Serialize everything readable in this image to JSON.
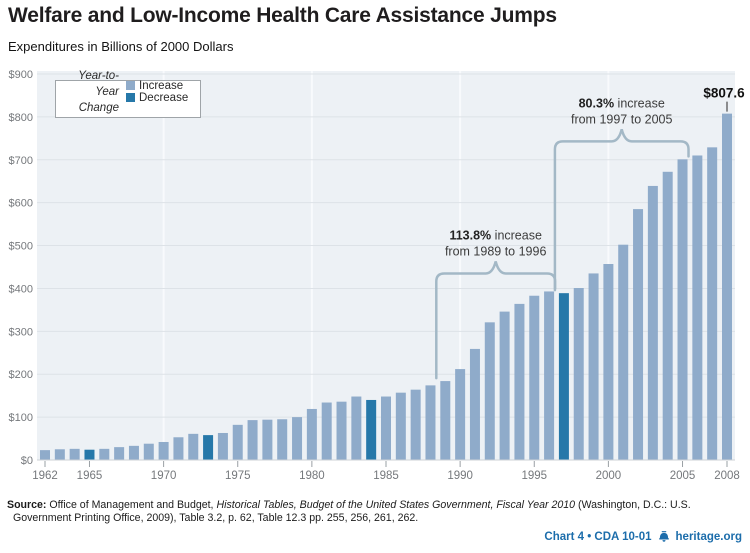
{
  "header": {
    "title": "Welfare and Low-Income Health Care Assistance Jumps",
    "subtitle": "Expenditures in Billions of 2000 Dollars"
  },
  "legend": {
    "title_line1": "Year-to-Year",
    "title_line2": "Change",
    "items": [
      {
        "label": "Increase",
        "color": "#8fabca"
      },
      {
        "label": "Decrease",
        "color": "#2678a9"
      }
    ]
  },
  "chart_data": {
    "type": "bar",
    "title": "Welfare and Low-Income Health Care Assistance Jumps",
    "unit": "billions of 2000 dollars",
    "x": [
      1962,
      1963,
      1964,
      1965,
      1966,
      1967,
      1968,
      1969,
      1970,
      1971,
      1972,
      1973,
      1974,
      1975,
      1976,
      1977,
      1978,
      1979,
      1980,
      1981,
      1982,
      1983,
      1984,
      1985,
      1986,
      1987,
      1988,
      1989,
      1990,
      1991,
      1992,
      1993,
      1994,
      1995,
      1996,
      1997,
      1998,
      1999,
      2000,
      2001,
      2002,
      2003,
      2004,
      2005,
      2006,
      2007,
      2008
    ],
    "values": [
      23,
      25,
      26,
      24,
      26,
      30,
      33,
      38,
      42,
      53,
      61,
      58,
      63,
      82,
      93,
      94,
      95,
      100,
      119,
      134,
      136,
      148,
      140,
      148,
      157,
      164,
      174,
      184,
      212,
      259,
      321,
      346,
      364,
      383,
      393,
      389,
      401,
      435,
      457,
      502,
      585,
      639,
      672,
      701,
      710,
      729,
      807.6
    ],
    "decrease_years": [
      1965,
      1973,
      1984,
      1997
    ],
    "ylim": [
      0,
      900
    ],
    "ytick_step": 100,
    "ytick_labels": [
      "$0",
      "$100",
      "$200",
      "$300",
      "$400",
      "$500",
      "$600",
      "$700",
      "$800",
      "$900"
    ],
    "xtick_years": [
      1962,
      1965,
      1970,
      1975,
      1980,
      1985,
      1990,
      1995,
      2000,
      2005,
      2008
    ],
    "grid": true,
    "legend_position": "top-left",
    "callout": {
      "year": 2008,
      "label": "$807.6"
    },
    "annotations": [
      {
        "pct": "113.8%",
        "rest": " increase",
        "line2": "from 1989 to 1996",
        "from_year": 1989,
        "to_year": 1996
      },
      {
        "pct": "80.3%",
        "rest": " increase",
        "line2": "from 1997 to 2005",
        "from_year": 1997,
        "to_year": 2005
      }
    ]
  },
  "colors": {
    "increase_bar": "#8fabca",
    "decrease_bar": "#2678a9",
    "plot_bg": "#edf1f5",
    "gridline": "#dde2e7",
    "baseline": "#cdd2d6",
    "decade_line": "#f8fafc",
    "brace": "#a3b8c6",
    "axis_label": "#75787c",
    "tick": "#9aa0a4",
    "annotation_text": "#3c3c3c",
    "footer_blue": "#1c6dab"
  },
  "source": {
    "segments": [
      {
        "t": "Source: ",
        "b": true
      },
      {
        "t": "Office of Management and Budget, "
      },
      {
        "t": "Historical Tables, Budget of the United States Government, Fiscal Year 2010",
        "i": true
      },
      {
        "t": " (Washington, D.C.: U.S. Government Printing Office, 2009), Table 3.2, p. 62, Table 12.3 pp. 255, 256, 261, 262."
      }
    ]
  },
  "footer": {
    "chart_label": "Chart 4 • CDA 10-01",
    "site": "heritage.org"
  }
}
